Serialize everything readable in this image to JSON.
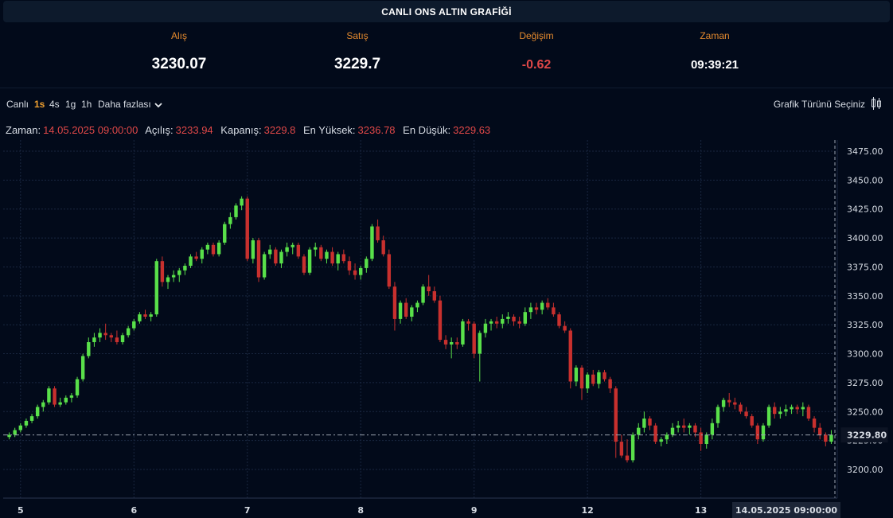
{
  "header": {
    "title": "CANLI ONS ALTIN GRAFİĞİ"
  },
  "quote": {
    "bid_label": "Alış",
    "bid_value": "3230.07",
    "ask_label": "Satış",
    "ask_value": "3229.7",
    "change_label": "Değişim",
    "change_value": "-0.62",
    "time_label": "Zaman",
    "time_value": "09:39:21"
  },
  "toolbar": {
    "live": "Canlı",
    "intervals": [
      "1s",
      "4s",
      "1g",
      "1h"
    ],
    "active_interval": "1s",
    "more": "Daha fazlası",
    "chart_type": "Grafik Türünü Seçiniz"
  },
  "ohlc": {
    "time_label": "Zaman:",
    "time_value": "14.05.2025 09:00:00",
    "open_label": "Açılış:",
    "open_value": "3233.94",
    "close_label": "Kapanış:",
    "close_value": "3229.8",
    "high_label": "En Yüksek:",
    "high_value": "3236.78",
    "low_label": "En Düşük:",
    "low_value": "3229.63"
  },
  "colors": {
    "up": "#59e04a",
    "down": "#c8302e",
    "background": "#020a1a",
    "accent": "#f0a030"
  },
  "chart_data": {
    "type": "candlestick",
    "title": "",
    "ylim": [
      3180,
      3490
    ],
    "yticks": [
      3200,
      3225,
      3250,
      3275,
      3300,
      3325,
      3350,
      3375,
      3400,
      3425,
      3450,
      3475
    ],
    "x_labels": [
      "5",
      "6",
      "7",
      "8",
      "9",
      "12",
      "13"
    ],
    "x_label_index": [
      2,
      22,
      42,
      62,
      82,
      102,
      122
    ],
    "crosshair_label": "14.05.2025   09:00:00",
    "last_price": "3229.80",
    "last_price_value": 3229.8,
    "grid": true,
    "ohlc": [
      [
        3228,
        3232,
        3226,
        3230
      ],
      [
        3230,
        3236,
        3228,
        3234
      ],
      [
        3234,
        3240,
        3232,
        3238
      ],
      [
        3238,
        3244,
        3236,
        3242
      ],
      [
        3242,
        3248,
        3240,
        3246
      ],
      [
        3246,
        3256,
        3244,
        3254
      ],
      [
        3254,
        3260,
        3250,
        3258
      ],
      [
        3258,
        3272,
        3256,
        3270
      ],
      [
        3270,
        3272,
        3254,
        3256
      ],
      [
        3256,
        3262,
        3254,
        3258
      ],
      [
        3258,
        3264,
        3256,
        3262
      ],
      [
        3262,
        3266,
        3258,
        3264
      ],
      [
        3264,
        3280,
        3262,
        3278
      ],
      [
        3278,
        3300,
        3276,
        3298
      ],
      [
        3298,
        3314,
        3296,
        3310
      ],
      [
        3310,
        3318,
        3306,
        3314
      ],
      [
        3314,
        3322,
        3310,
        3318
      ],
      [
        3318,
        3326,
        3312,
        3316
      ],
      [
        3316,
        3318,
        3310,
        3314
      ],
      [
        3314,
        3320,
        3308,
        3310
      ],
      [
        3310,
        3318,
        3308,
        3316
      ],
      [
        3316,
        3324,
        3314,
        3322
      ],
      [
        3322,
        3330,
        3320,
        3328
      ],
      [
        3328,
        3336,
        3326,
        3334
      ],
      [
        3334,
        3338,
        3330,
        3332
      ],
      [
        3332,
        3336,
        3328,
        3334
      ],
      [
        3334,
        3382,
        3332,
        3380
      ],
      [
        3380,
        3384,
        3358,
        3362
      ],
      [
        3362,
        3368,
        3356,
        3366
      ],
      [
        3366,
        3372,
        3362,
        3368
      ],
      [
        3368,
        3374,
        3362,
        3372
      ],
      [
        3372,
        3378,
        3368,
        3376
      ],
      [
        3376,
        3386,
        3374,
        3384
      ],
      [
        3384,
        3388,
        3380,
        3382
      ],
      [
        3382,
        3392,
        3378,
        3390
      ],
      [
        3390,
        3396,
        3386,
        3394
      ],
      [
        3394,
        3396,
        3384,
        3386
      ],
      [
        3386,
        3398,
        3384,
        3396
      ],
      [
        3396,
        3414,
        3394,
        3412
      ],
      [
        3412,
        3422,
        3408,
        3418
      ],
      [
        3418,
        3430,
        3416,
        3428
      ],
      [
        3428,
        3436,
        3424,
        3434
      ],
      [
        3434,
        3436,
        3380,
        3382
      ],
      [
        3382,
        3400,
        3378,
        3398
      ],
      [
        3398,
        3400,
        3362,
        3366
      ],
      [
        3366,
        3388,
        3364,
        3386
      ],
      [
        3386,
        3394,
        3382,
        3390
      ],
      [
        3390,
        3392,
        3376,
        3378
      ],
      [
        3378,
        3390,
        3374,
        3388
      ],
      [
        3388,
        3396,
        3384,
        3392
      ],
      [
        3392,
        3396,
        3386,
        3394
      ],
      [
        3394,
        3396,
        3382,
        3384
      ],
      [
        3384,
        3386,
        3368,
        3370
      ],
      [
        3370,
        3392,
        3368,
        3390
      ],
      [
        3390,
        3396,
        3384,
        3392
      ],
      [
        3392,
        3394,
        3380,
        3382
      ],
      [
        3382,
        3390,
        3378,
        3388
      ],
      [
        3388,
        3392,
        3376,
        3378
      ],
      [
        3378,
        3388,
        3372,
        3386
      ],
      [
        3386,
        3390,
        3378,
        3380
      ],
      [
        3380,
        3384,
        3368,
        3372
      ],
      [
        3372,
        3378,
        3364,
        3368
      ],
      [
        3368,
        3376,
        3364,
        3374
      ],
      [
        3374,
        3384,
        3370,
        3382
      ],
      [
        3382,
        3412,
        3380,
        3410
      ],
      [
        3410,
        3416,
        3396,
        3398
      ],
      [
        3398,
        3402,
        3384,
        3386
      ],
      [
        3386,
        3390,
        3356,
        3358
      ],
      [
        3358,
        3362,
        3320,
        3330
      ],
      [
        3330,
        3346,
        3326,
        3344
      ],
      [
        3344,
        3348,
        3330,
        3332
      ],
      [
        3332,
        3342,
        3328,
        3340
      ],
      [
        3340,
        3346,
        3336,
        3344
      ],
      [
        3344,
        3360,
        3342,
        3358
      ],
      [
        3358,
        3368,
        3350,
        3354
      ],
      [
        3354,
        3358,
        3344,
        3346
      ],
      [
        3346,
        3350,
        3310,
        3312
      ],
      [
        3312,
        3316,
        3304,
        3308
      ],
      [
        3308,
        3314,
        3296,
        3310
      ],
      [
        3310,
        3314,
        3304,
        3308
      ],
      [
        3308,
        3330,
        3306,
        3328
      ],
      [
        3328,
        3330,
        3320,
        3326
      ],
      [
        3326,
        3328,
        3296,
        3300
      ],
      [
        3300,
        3320,
        3276,
        3318
      ],
      [
        3318,
        3330,
        3314,
        3326
      ],
      [
        3326,
        3330,
        3320,
        3328
      ],
      [
        3328,
        3332,
        3322,
        3326
      ],
      [
        3326,
        3334,
        3322,
        3330
      ],
      [
        3330,
        3336,
        3326,
        3332
      ],
      [
        3332,
        3334,
        3324,
        3328
      ],
      [
        3328,
        3332,
        3322,
        3326
      ],
      [
        3326,
        3340,
        3324,
        3336
      ],
      [
        3336,
        3344,
        3330,
        3340
      ],
      [
        3340,
        3344,
        3334,
        3338
      ],
      [
        3338,
        3346,
        3334,
        3344
      ],
      [
        3344,
        3348,
        3338,
        3340
      ],
      [
        3340,
        3344,
        3332,
        3334
      ],
      [
        3334,
        3336,
        3322,
        3324
      ],
      [
        3324,
        3328,
        3318,
        3320
      ],
      [
        3320,
        3322,
        3270,
        3276
      ],
      [
        3276,
        3290,
        3272,
        3288
      ],
      [
        3288,
        3290,
        3260,
        3270
      ],
      [
        3270,
        3284,
        3266,
        3282
      ],
      [
        3282,
        3286,
        3272,
        3274
      ],
      [
        3274,
        3286,
        3270,
        3284
      ],
      [
        3284,
        3286,
        3276,
        3278
      ],
      [
        3278,
        3280,
        3266,
        3270
      ],
      [
        3270,
        3272,
        3210,
        3224
      ],
      [
        3224,
        3230,
        3210,
        3212
      ],
      [
        3212,
        3226,
        3206,
        3208
      ],
      [
        3208,
        3232,
        3206,
        3230
      ],
      [
        3230,
        3240,
        3226,
        3236
      ],
      [
        3236,
        3250,
        3232,
        3244
      ],
      [
        3244,
        3246,
        3234,
        3238
      ],
      [
        3238,
        3240,
        3222,
        3224
      ],
      [
        3224,
        3228,
        3220,
        3226
      ],
      [
        3226,
        3232,
        3222,
        3230
      ],
      [
        3230,
        3240,
        3228,
        3236
      ],
      [
        3236,
        3242,
        3232,
        3238
      ],
      [
        3238,
        3244,
        3232,
        3236
      ],
      [
        3236,
        3240,
        3230,
        3238
      ],
      [
        3238,
        3240,
        3228,
        3232
      ],
      [
        3232,
        3236,
        3216,
        3222
      ],
      [
        3222,
        3232,
        3218,
        3230
      ],
      [
        3230,
        3244,
        3226,
        3240
      ],
      [
        3240,
        3256,
        3236,
        3254
      ],
      [
        3254,
        3262,
        3250,
        3260
      ],
      [
        3260,
        3266,
        3254,
        3258
      ],
      [
        3258,
        3262,
        3252,
        3256
      ],
      [
        3256,
        3258,
        3248,
        3250
      ],
      [
        3250,
        3254,
        3244,
        3246
      ],
      [
        3246,
        3248,
        3236,
        3238
      ],
      [
        3238,
        3240,
        3222,
        3226
      ],
      [
        3226,
        3240,
        3224,
        3238
      ],
      [
        3238,
        3256,
        3236,
        3254
      ],
      [
        3254,
        3258,
        3244,
        3248
      ],
      [
        3248,
        3254,
        3244,
        3250
      ],
      [
        3250,
        3256,
        3246,
        3252
      ],
      [
        3252,
        3256,
        3248,
        3254
      ],
      [
        3254,
        3256,
        3248,
        3252
      ],
      [
        3252,
        3258,
        3246,
        3254
      ],
      [
        3254,
        3256,
        3242,
        3244
      ],
      [
        3244,
        3246,
        3232,
        3236
      ],
      [
        3236,
        3240,
        3226,
        3230
      ],
      [
        3230,
        3232,
        3220,
        3224
      ],
      [
        3224,
        3234,
        3222,
        3230
      ]
    ]
  }
}
